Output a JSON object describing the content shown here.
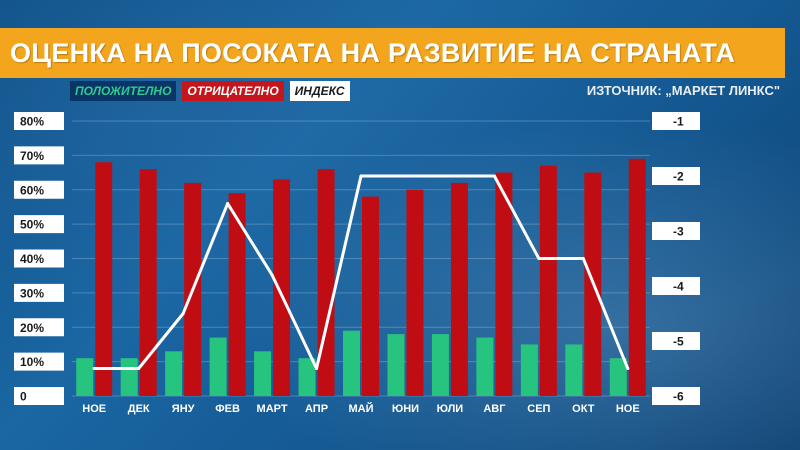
{
  "title": "ОЦЕНКА НА ПОСОКАТА НА РАЗВИТИЕ НА СТРАНАТА",
  "source": "ИЗТОЧНИК: „МАРКЕТ ЛИНКС\"",
  "colors": {
    "positive": "#27c47f",
    "negative": "#c00d14",
    "index": "#ffffff",
    "title_bg": "#f3a51d"
  },
  "chart_data": {
    "type": "bar",
    "categories": [
      "НОЕ",
      "ДЕК",
      "ЯНУ",
      "ФЕВ",
      "МАРТ",
      "АПР",
      "МАЙ",
      "ЮНИ",
      "ЮЛИ",
      "АВГ",
      "СЕП",
      "ОКТ",
      "НОЕ"
    ],
    "series": [
      {
        "name": "ПОЛОЖИТЕЛНО",
        "type": "bar",
        "axis": "left",
        "color": "#27c47f",
        "values": [
          11,
          11,
          13,
          17,
          13,
          11,
          19,
          18,
          18,
          17,
          15,
          15,
          11
        ]
      },
      {
        "name": "ОТРИЦАТЕЛНО",
        "type": "bar",
        "axis": "left",
        "color": "#c00d14",
        "values": [
          68,
          66,
          62,
          59,
          63,
          66,
          58,
          60,
          62,
          65,
          67,
          65,
          69
        ]
      },
      {
        "name": "ИНДЕКС",
        "type": "line",
        "axis": "right",
        "color": "#ffffff",
        "values": [
          -5.5,
          -5.5,
          -4.5,
          -2.5,
          -3.8,
          -5.5,
          -2,
          -2,
          -2,
          -2,
          -3.5,
          -3.5,
          -5.5
        ]
      }
    ],
    "y_left": {
      "ticks": [
        "80%",
        "70%",
        "60%",
        "50%",
        "40%",
        "30%",
        "20%",
        "10%",
        "0"
      ],
      "range": [
        0,
        80
      ]
    },
    "y_right": {
      "ticks": [
        "-1",
        "-2",
        "-3",
        "-4",
        "-5",
        "-6"
      ],
      "range": [
        -6,
        -1
      ]
    },
    "legend_placement": "top-left"
  }
}
